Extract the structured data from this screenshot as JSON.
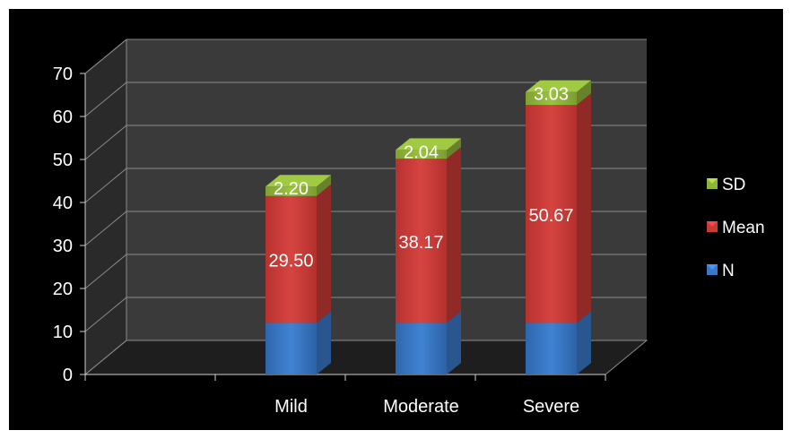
{
  "chart_data": {
    "type": "bar",
    "stacked": true,
    "style": "3d",
    "categories": [
      "",
      "Mild",
      "Moderate",
      "Severe"
    ],
    "series": [
      {
        "name": "N",
        "values": [
          null,
          12,
          12,
          12
        ],
        "color": "#3a78c6",
        "labels": [
          "",
          "",
          "",
          ""
        ]
      },
      {
        "name": "Mean",
        "values": [
          null,
          29.5,
          38.17,
          50.67
        ],
        "color": "#c83a36",
        "labels": [
          "",
          "29.50",
          "38.17",
          "50.67"
        ]
      },
      {
        "name": "SD",
        "values": [
          null,
          2.2,
          2.04,
          3.03
        ],
        "color": "#8fb43a",
        "labels": [
          "",
          "2.20",
          "2.04",
          "3.03"
        ]
      }
    ],
    "y_ticks": [
      "0",
      "10",
      "20",
      "30",
      "40",
      "50",
      "60",
      "70"
    ],
    "ylim": [
      0,
      70
    ],
    "grid": true,
    "legend_position": "right",
    "background": "#000000",
    "plot_wall_color": "#3a3a3a",
    "text_color": "#ffffff"
  }
}
